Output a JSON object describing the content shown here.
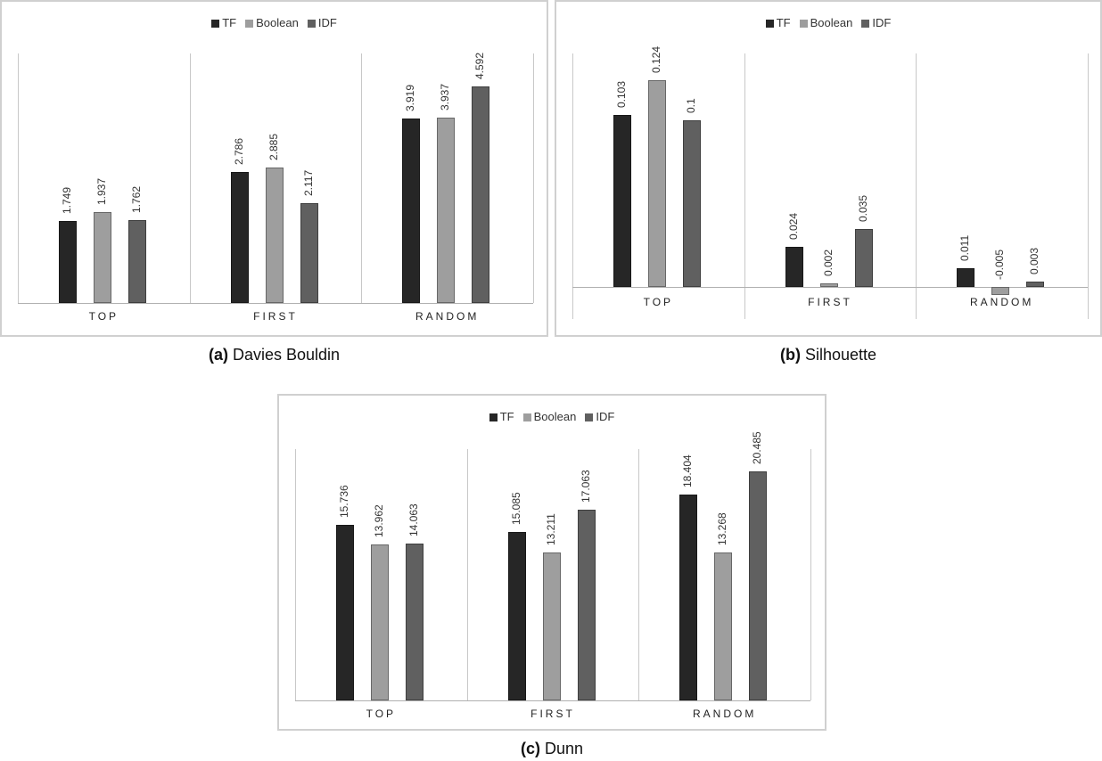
{
  "legend": [
    {
      "label": "TF",
      "color": "#262626"
    },
    {
      "label": "Boolean",
      "color": "#9e9e9e"
    },
    {
      "label": "IDF",
      "color": "#606060"
    }
  ],
  "captions": {
    "a": {
      "tag": "(a)",
      "text": "Davies Bouldin"
    },
    "b": {
      "tag": "(b)",
      "text": "Silhouette"
    },
    "c": {
      "tag": "(c)",
      "text": "Dunn"
    }
  },
  "chart_data": [
    {
      "type": "bar",
      "title": "(a) Davies Bouldin",
      "categories": [
        "TOP",
        "FIRST",
        "RANDOM"
      ],
      "series": [
        {
          "name": "TF",
          "values": [
            1.749,
            2.786,
            3.919
          ]
        },
        {
          "name": "Boolean",
          "values": [
            1.937,
            2.885,
            3.937
          ]
        },
        {
          "name": "IDF",
          "values": [
            1.762,
            2.117,
            4.592
          ]
        }
      ],
      "legend_position": "top",
      "grid": false
    },
    {
      "type": "bar",
      "title": "(b) Silhouette",
      "categories": [
        "TOP",
        "FIRST",
        "RANDOM"
      ],
      "series": [
        {
          "name": "TF",
          "values": [
            0.103,
            0.024,
            0.011
          ]
        },
        {
          "name": "Boolean",
          "values": [
            0.124,
            0.002,
            -0.005
          ]
        },
        {
          "name": "IDF",
          "values": [
            0.1,
            0.035,
            0.003
          ]
        }
      ],
      "legend_position": "top",
      "grid": false
    },
    {
      "type": "bar",
      "title": "(c) Dunn",
      "categories": [
        "TOP",
        "FIRST",
        "RANDOM"
      ],
      "series": [
        {
          "name": "TF",
          "values": [
            15.736,
            15.085,
            18.404
          ]
        },
        {
          "name": "Boolean",
          "values": [
            13.962,
            13.211,
            13.268
          ]
        },
        {
          "name": "IDF",
          "values": [
            14.063,
            17.063,
            20.485
          ]
        }
      ],
      "legend_position": "top",
      "grid": false
    }
  ]
}
